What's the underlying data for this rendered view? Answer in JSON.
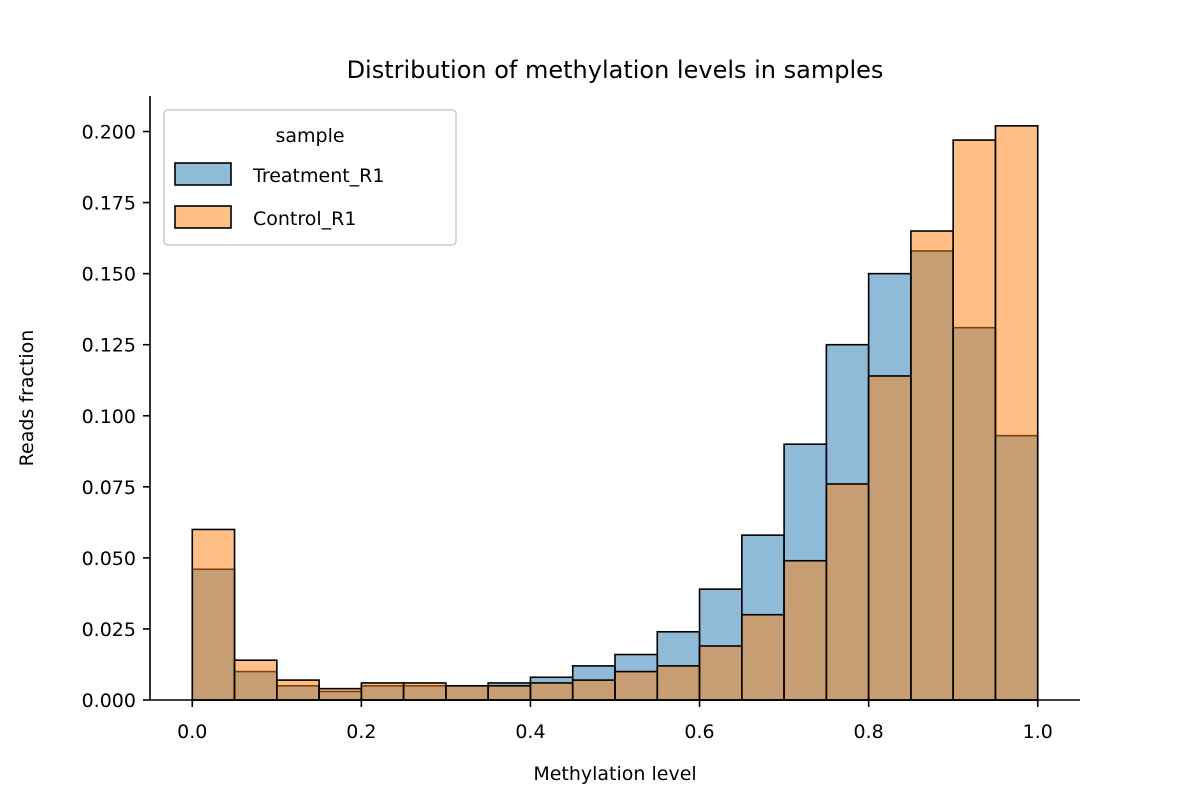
{
  "chart_data": {
    "type": "bar",
    "title": "Distribution of methylation levels in samples",
    "xlabel": "Methylation level",
    "ylabel": "Reads fraction",
    "xlim": [
      -0.05,
      1.05
    ],
    "ylim": [
      0,
      0.2125
    ],
    "xticks": [
      "0.0",
      "0.2",
      "0.4",
      "0.6",
      "0.8",
      "1.0"
    ],
    "yticks": [
      "0.000",
      "0.025",
      "0.050",
      "0.075",
      "0.100",
      "0.125",
      "0.150",
      "0.175",
      "0.200"
    ],
    "bin_edges": [
      0.0,
      0.05,
      0.1,
      0.15,
      0.2,
      0.25,
      0.3,
      0.35,
      0.4,
      0.45,
      0.5,
      0.55,
      0.6,
      0.65,
      0.7,
      0.75,
      0.8,
      0.85,
      0.9,
      0.95,
      1.0
    ],
    "series": [
      {
        "name": "Treatment_R1",
        "color": "#1f77b4",
        "values": [
          0.046,
          0.01,
          0.005,
          0.003,
          0.005,
          0.005,
          0.005,
          0.006,
          0.008,
          0.012,
          0.016,
          0.024,
          0.039,
          0.058,
          0.09,
          0.125,
          0.15,
          0.158,
          0.131,
          0.093
        ]
      },
      {
        "name": "Control_R1",
        "color": "#ff7f0e",
        "values": [
          0.06,
          0.014,
          0.007,
          0.004,
          0.006,
          0.006,
          0.005,
          0.005,
          0.006,
          0.007,
          0.01,
          0.012,
          0.019,
          0.03,
          0.049,
          0.076,
          0.114,
          0.165,
          0.197,
          0.202
        ]
      }
    ],
    "legend": {
      "title": "sample",
      "position": "top-left"
    },
    "grid": false
  }
}
